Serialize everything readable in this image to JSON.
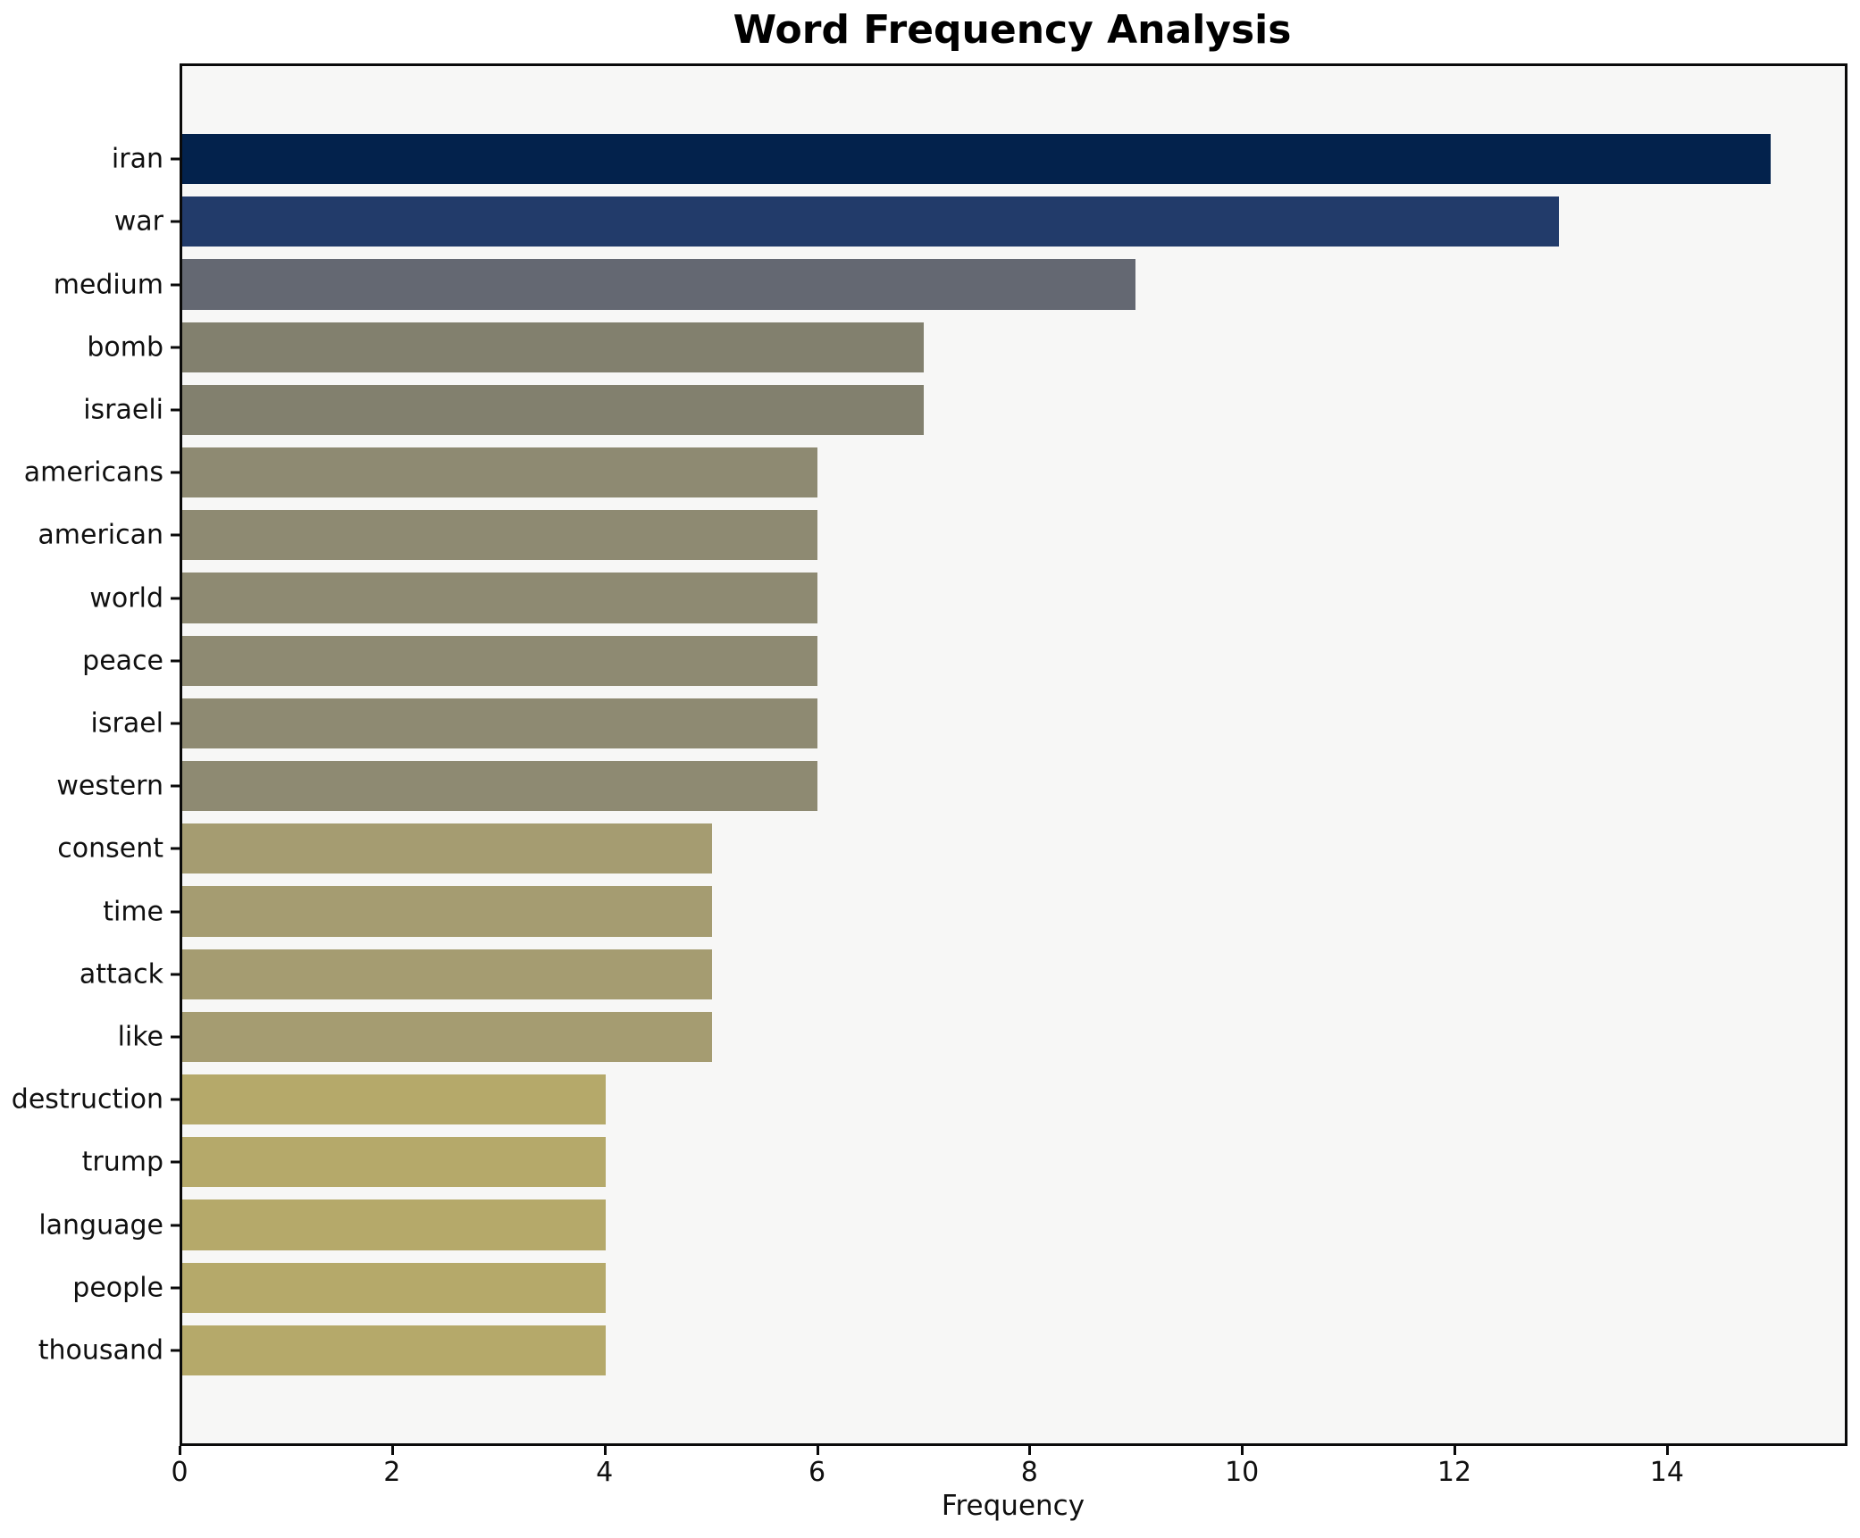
{
  "chart_data": {
    "type": "bar",
    "orientation": "horizontal",
    "title": "Word Frequency Analysis",
    "xlabel": "Frequency",
    "ylabel": "",
    "categories": [
      "iran",
      "war",
      "medium",
      "bomb",
      "israeli",
      "americans",
      "american",
      "world",
      "peace",
      "israel",
      "western",
      "consent",
      "time",
      "attack",
      "like",
      "destruction",
      "trump",
      "language",
      "people",
      "thousand"
    ],
    "values": [
      15,
      13,
      9,
      7,
      7,
      6,
      6,
      6,
      6,
      6,
      6,
      5,
      5,
      5,
      5,
      4,
      4,
      4,
      4,
      4
    ],
    "bar_colors": [
      "#03224c",
      "#223b6a",
      "#646872",
      "#82806e",
      "#82806e",
      "#8e8a72",
      "#8e8a72",
      "#8e8a72",
      "#8e8a72",
      "#8e8a72",
      "#8e8a72",
      "#a59c71",
      "#a59c71",
      "#a59c71",
      "#a59c71",
      "#b5a96a",
      "#b5a96a",
      "#b5a96a",
      "#b5a96a",
      "#b5a96a"
    ],
    "xlim": [
      0,
      15.7
    ],
    "xticks": [
      0,
      2,
      4,
      6,
      8,
      10,
      12,
      14
    ],
    "grid": false,
    "legend_position": "none",
    "plot_background": "#f7f7f6",
    "figure_background": "#ffffff",
    "spine_color": "#0a0a0a"
  }
}
